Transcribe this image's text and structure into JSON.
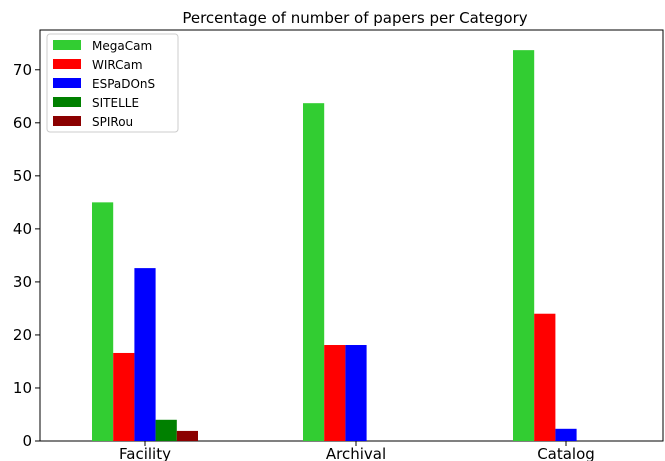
{
  "chart_data": {
    "type": "bar",
    "title": "Percentage of number of papers per Category",
    "xlabel": "",
    "ylabel": "",
    "categories": [
      "Facility",
      "Archival",
      "Catalog"
    ],
    "series": [
      {
        "name": "MegaCam",
        "color": "#32cd32",
        "values": [
          45,
          63.7,
          73.7
        ]
      },
      {
        "name": "WIRCam",
        "color": "#ff0000",
        "values": [
          16.6,
          18.1,
          24.0
        ]
      },
      {
        "name": "ESPaDOnS",
        "color": "#0000ff",
        "values": [
          32.6,
          18.1,
          2.3
        ]
      },
      {
        "name": "SITELLE",
        "color": "#008000",
        "values": [
          4.0,
          0,
          0
        ]
      },
      {
        "name": "SPIRou",
        "color": "#8b0000",
        "values": [
          1.9,
          0,
          0
        ]
      }
    ],
    "ylim": [
      0,
      77.5
    ],
    "yticks": [
      "0",
      "10",
      "20",
      "30",
      "40",
      "50",
      "60",
      "70"
    ],
    "grid": false,
    "legend_position": "top-left"
  }
}
